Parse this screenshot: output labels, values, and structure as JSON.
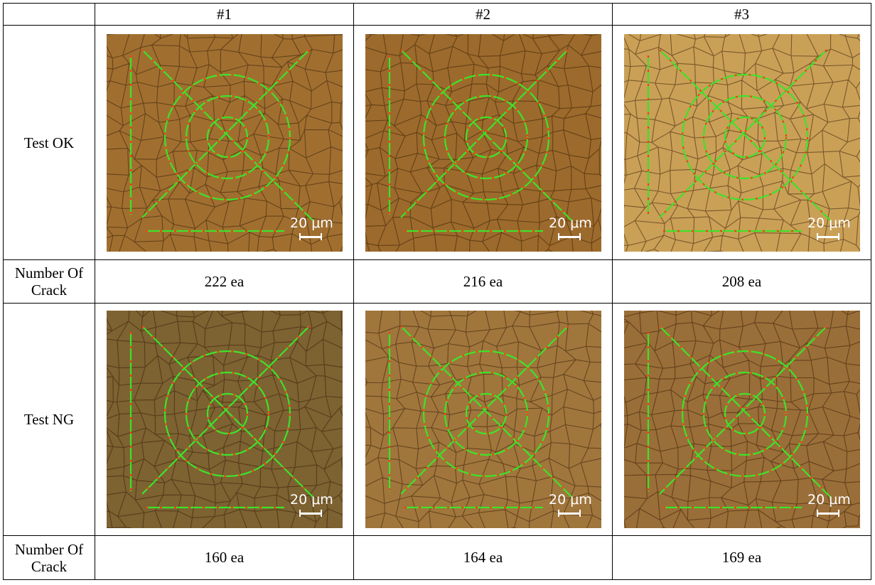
{
  "table": {
    "columns": [
      "#1",
      "#2",
      "#3"
    ],
    "rows": [
      {
        "label": "Test OK"
      },
      {
        "label": "Number Of Crack",
        "values": [
          "222 ea",
          "216 ea",
          "208 ea"
        ]
      },
      {
        "label": "Test NG"
      },
      {
        "label": "Number Of Crack",
        "values": [
          "160 ea",
          "164 ea",
          "169 ea"
        ]
      }
    ],
    "scale_bar": "20 μm"
  }
}
